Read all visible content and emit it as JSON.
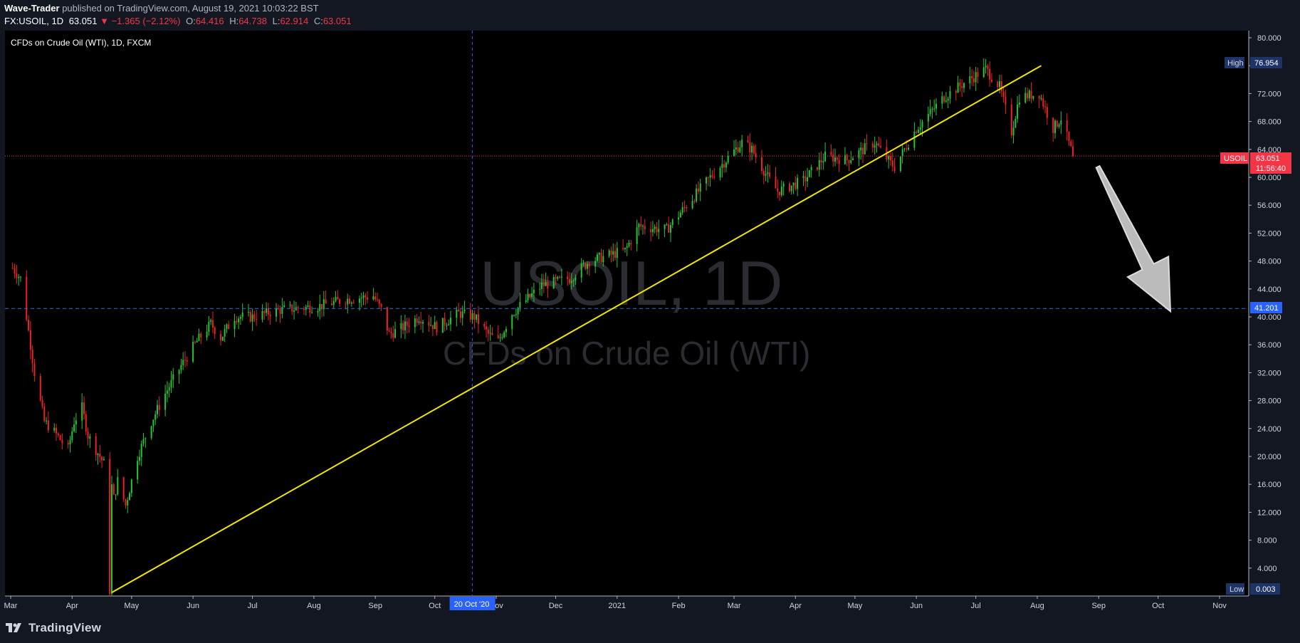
{
  "header": {
    "author": "Wave-Trader",
    "published_text": "published on TradingView.com, August 19, 2021 10:03:22 BST",
    "symbol": "FX:USOIL, 1D",
    "last": "63.051",
    "change": "−1.365 (−2.12%)",
    "open_label": "O:",
    "open": "64.416",
    "high_label": "H:",
    "high": "64.738",
    "low_label": "L:",
    "low": "62.914",
    "close_label": "C:",
    "close": "63.051"
  },
  "chart_data": {
    "type": "candlestick",
    "title": "CFDs on Crude Oil (WTI), 1D, FXCM",
    "watermark_symbol": "USOIL, 1D",
    "watermark_name": "CFDs on Crude Oil (WTI)",
    "x_ticks": [
      "Mar",
      "Apr",
      "May",
      "Jun",
      "Jul",
      "Aug",
      "Sep",
      "Oct",
      "Nov",
      "Dec",
      "2021",
      "Feb",
      "Mar",
      "Apr",
      "May",
      "Jun",
      "Jul",
      "Aug",
      "Sep",
      "Oct",
      "Nov"
    ],
    "crosshair_date_label": "20 Oct '20",
    "y_ticks": [
      "80.000",
      "76.000",
      "72.000",
      "68.000",
      "64.000",
      "60.000",
      "56.000",
      "52.000",
      "48.000",
      "44.000",
      "40.000",
      "36.000",
      "32.000",
      "28.000",
      "24.000",
      "20.000",
      "16.000",
      "12.000",
      "8.000",
      "4.000"
    ],
    "ylim": [
      0.003,
      80
    ],
    "price_series": [
      [
        "2020-03-02",
        47.0
      ],
      [
        "2020-03-06",
        45.5
      ],
      [
        "2020-03-09",
        40.0
      ],
      [
        "2020-03-13",
        32.0
      ],
      [
        "2020-03-18",
        25.0
      ],
      [
        "2020-03-23",
        23.5
      ],
      [
        "2020-03-30",
        21.0
      ],
      [
        "2020-04-02",
        25.0
      ],
      [
        "2020-04-06",
        27.0
      ],
      [
        "2020-04-09",
        23.0
      ],
      [
        "2020-04-14",
        20.5
      ],
      [
        "2020-04-17",
        19.0
      ],
      [
        "2020-04-20",
        0.003
      ],
      [
        "2020-04-22",
        14.0
      ],
      [
        "2020-04-24",
        16.5
      ],
      [
        "2020-04-28",
        13.0
      ],
      [
        "2020-05-04",
        20.0
      ],
      [
        "2020-05-11",
        25.0
      ],
      [
        "2020-05-18",
        29.0
      ],
      [
        "2020-05-26",
        33.0
      ],
      [
        "2020-06-03",
        36.5
      ],
      [
        "2020-06-10",
        39.0
      ],
      [
        "2020-06-15",
        37.0
      ],
      [
        "2020-06-22",
        40.0
      ],
      [
        "2020-07-01",
        40.0
      ],
      [
        "2020-07-15",
        41.0
      ],
      [
        "2020-08-03",
        41.5
      ],
      [
        "2020-08-17",
        42.5
      ],
      [
        "2020-08-31",
        43.0
      ],
      [
        "2020-09-04",
        41.0
      ],
      [
        "2020-09-08",
        37.5
      ],
      [
        "2020-09-15",
        38.5
      ],
      [
        "2020-09-23",
        40.0
      ],
      [
        "2020-10-02",
        38.5
      ],
      [
        "2020-10-13",
        40.5
      ],
      [
        "2020-10-21",
        40.0
      ],
      [
        "2020-10-28",
        37.5
      ],
      [
        "2020-11-02",
        36.5
      ],
      [
        "2020-11-09",
        40.5
      ],
      [
        "2020-11-24",
        44.5
      ],
      [
        "2020-12-08",
        45.5
      ],
      [
        "2020-12-18",
        48.0
      ],
      [
        "2021-01-05",
        49.5
      ],
      [
        "2021-01-12",
        53.0
      ],
      [
        "2021-01-26",
        52.5
      ],
      [
        "2021-02-05",
        56.0
      ],
      [
        "2021-02-17",
        60.0
      ],
      [
        "2021-03-05",
        65.0
      ],
      [
        "2021-03-10",
        64.0
      ],
      [
        "2021-03-18",
        60.0
      ],
      [
        "2021-03-23",
        58.0
      ],
      [
        "2021-04-05",
        59.5
      ],
      [
        "2021-04-16",
        63.0
      ],
      [
        "2021-04-27",
        62.5
      ],
      [
        "2021-05-11",
        65.0
      ],
      [
        "2021-05-19",
        62.0
      ],
      [
        "2021-05-21",
        61.5
      ],
      [
        "2021-06-01",
        67.0
      ],
      [
        "2021-06-15",
        71.5
      ],
      [
        "2021-06-25",
        73.5
      ],
      [
        "2021-07-06",
        75.5
      ],
      [
        "2021-07-13",
        73.0
      ],
      [
        "2021-07-19",
        66.5
      ],
      [
        "2021-07-23",
        71.5
      ],
      [
        "2021-08-02",
        72.0
      ],
      [
        "2021-08-09",
        67.0
      ],
      [
        "2021-08-13",
        68.5
      ],
      [
        "2021-08-19",
        63.05
      ]
    ],
    "trendline": [
      [
        "2020-04-21",
        0.5
      ],
      [
        "2021-08-03",
        76.0
      ]
    ],
    "horizontal_levels": [
      {
        "value": 41.201,
        "label": "41.201"
      }
    ],
    "arrow": {
      "from": [
        "2021-08-28",
        61.5
      ],
      "to": [
        "2021-09-30",
        41.0
      ]
    },
    "price_labels": {
      "high_tag": "High",
      "high_value": "76.954",
      "low_tag": "Low",
      "low_value": "0.003",
      "current_tag": "USOIL",
      "current_value": "63.051",
      "countdown": "11:56:40",
      "current_price": 63.051,
      "high_price": 76.954,
      "low_price": 0.003
    }
  },
  "footer": {
    "logo_text": "TradingView"
  },
  "colors": {
    "up": "#26c632",
    "down": "#ef2121",
    "trend": "#f2e600",
    "level": "#3b6fd6",
    "current": "#f23645",
    "crosshair": "#2962ff"
  }
}
